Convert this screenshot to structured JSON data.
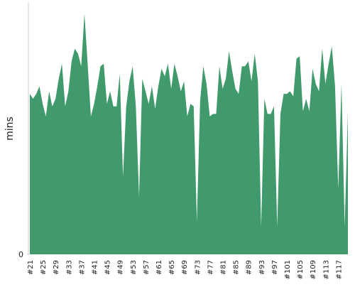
{
  "chart_data": {
    "type": "area",
    "y_label": "mins",
    "color": "#409a6b",
    "ylim": [
      0,
      100
    ],
    "yticks": [
      0
    ],
    "categories": [
      "#21",
      null,
      null,
      null,
      "#25",
      null,
      null,
      null,
      "#29",
      null,
      null,
      null,
      "#33",
      null,
      null,
      null,
      "#37",
      null,
      null,
      null,
      "#41",
      null,
      null,
      null,
      "#45",
      null,
      null,
      null,
      "#49",
      null,
      null,
      null,
      "#53",
      null,
      null,
      null,
      "#57",
      null,
      null,
      null,
      "#61",
      null,
      null,
      null,
      "#65",
      null,
      null,
      null,
      "#69",
      null,
      null,
      null,
      "#73",
      null,
      null,
      null,
      "#77",
      null,
      null,
      null,
      "#81",
      null,
      null,
      null,
      "#85",
      null,
      null,
      null,
      "#89",
      null,
      null,
      null,
      "#93",
      null,
      null,
      null,
      "#97",
      null,
      null,
      null,
      "#101",
      null,
      null,
      null,
      "#105",
      null,
      null,
      null,
      "#109",
      null,
      null,
      null,
      "#113",
      null,
      null,
      null,
      "#117",
      null,
      null,
      null
    ],
    "values": [
      64,
      62,
      64,
      67,
      60,
      55,
      65,
      59,
      62,
      70,
      76,
      59,
      65,
      77,
      82,
      80,
      75,
      96,
      76,
      55,
      60,
      67,
      75,
      76,
      60,
      65,
      59,
      59,
      72,
      31,
      59,
      69,
      75,
      59,
      23,
      70,
      65,
      60,
      67,
      58,
      67,
      74,
      71,
      76,
      66,
      76,
      71,
      65,
      69,
      55,
      60,
      59,
      13,
      61,
      75,
      68,
      55,
      56,
      56,
      75,
      66,
      70,
      81,
      73,
      66,
      64,
      75,
      75,
      77,
      69,
      80,
      69,
      11,
      62,
      56,
      56,
      59,
      11,
      56,
      64,
      64,
      65,
      63,
      78,
      79,
      57,
      62,
      57,
      74,
      68,
      65,
      82,
      68,
      76,
      83,
      67,
      26,
      68,
      11,
      57
    ]
  }
}
